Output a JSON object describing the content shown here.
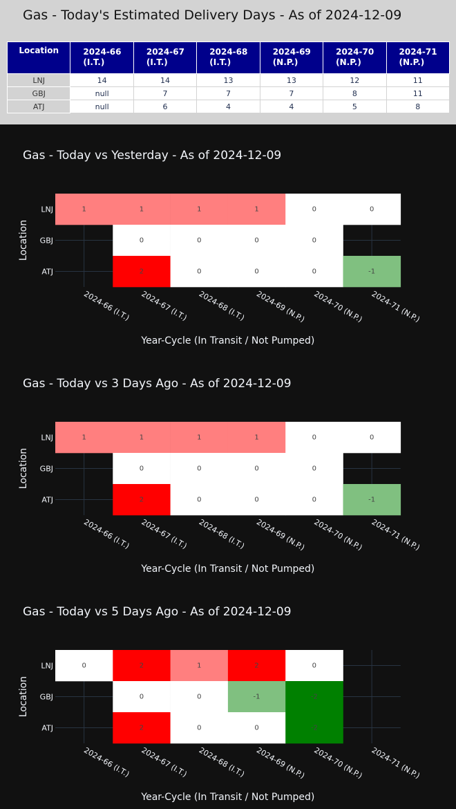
{
  "table": {
    "title": "Gas - Today's Estimated Delivery Days - As of 2024-12-09",
    "location_header": "Location",
    "columns": [
      {
        "code": "2024-66",
        "status": "(I.T.)"
      },
      {
        "code": "2024-67",
        "status": "(I.T.)"
      },
      {
        "code": "2024-68",
        "status": "(I.T.)"
      },
      {
        "code": "2024-69",
        "status": "(N.P.)"
      },
      {
        "code": "2024-70",
        "status": "(N.P.)"
      },
      {
        "code": "2024-71",
        "status": "(N.P.)"
      }
    ],
    "rows": [
      {
        "location": "LNJ",
        "values": [
          "14",
          "14",
          "13",
          "13",
          "12",
          "11"
        ]
      },
      {
        "location": "GBJ",
        "values": [
          "null",
          "7",
          "7",
          "7",
          "8",
          "11"
        ]
      },
      {
        "location": "ATJ",
        "values": [
          "null",
          "6",
          "4",
          "4",
          "5",
          "8"
        ]
      }
    ]
  },
  "chart_data": [
    {
      "type": "heatmap",
      "title": "Gas - Today vs Yesterday - As of 2024-12-09",
      "xlabel": "Year-Cycle (In Transit / Not Pumped)",
      "ylabel": "Location",
      "x": [
        "2024-66 (I.T.)",
        "2024-67 (I.T.)",
        "2024-68 (I.T.)",
        "2024-69 (N.P.)",
        "2024-70 (N.P.)",
        "2024-71 (N.P.)"
      ],
      "y": [
        "LNJ",
        "GBJ",
        "ATJ"
      ],
      "z": [
        [
          1,
          1,
          1,
          1,
          0,
          0
        ],
        [
          null,
          0,
          0,
          0,
          0,
          null
        ],
        [
          null,
          2,
          0,
          0,
          0,
          -1
        ]
      ],
      "grid": true
    },
    {
      "type": "heatmap",
      "title": "Gas - Today vs 3 Days Ago - As of 2024-12-09",
      "xlabel": "Year-Cycle (In Transit / Not Pumped)",
      "ylabel": "Location",
      "x": [
        "2024-66 (I.T.)",
        "2024-67 (I.T.)",
        "2024-68 (I.T.)",
        "2024-69 (N.P.)",
        "2024-70 (N.P.)",
        "2024-71 (N.P.)"
      ],
      "y": [
        "LNJ",
        "GBJ",
        "ATJ"
      ],
      "z": [
        [
          1,
          1,
          1,
          1,
          0,
          0
        ],
        [
          null,
          0,
          0,
          0,
          0,
          null
        ],
        [
          null,
          2,
          0,
          0,
          0,
          -1
        ]
      ],
      "grid": true
    },
    {
      "type": "heatmap",
      "title": "Gas - Today vs 5 Days Ago - As of 2024-12-09",
      "xlabel": "Year-Cycle (In Transit / Not Pumped)",
      "ylabel": "Location",
      "x": [
        "2024-66 (I.T.)",
        "2024-67 (I.T.)",
        "2024-68 (I.T.)",
        "2024-69 (N.P.)",
        "2024-70 (N.P.)",
        "2024-71 (N.P.)"
      ],
      "y": [
        "LNJ",
        "GBJ",
        "ATJ"
      ],
      "z": [
        [
          0,
          2,
          1,
          2,
          0,
          null
        ],
        [
          null,
          0,
          0,
          -1,
          -2,
          null
        ],
        [
          null,
          2,
          0,
          0,
          -2,
          null
        ]
      ],
      "grid": true
    }
  ],
  "colors": {
    "page_background": "#111111",
    "table_panel": "#d3d3d3",
    "table_header": "#00008b",
    "zero": "#ffffff",
    "plus_one": "#ff7f7f",
    "plus_two": "#ff0000",
    "minus_one": "#80c080",
    "minus_two": "#008000",
    "gridline": "#283442"
  }
}
